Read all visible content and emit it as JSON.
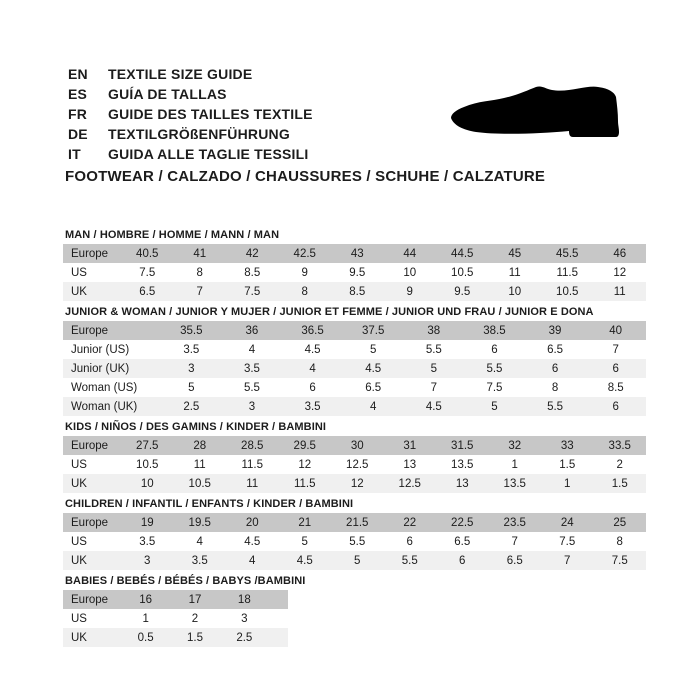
{
  "header": {
    "languages": [
      {
        "code": "EN",
        "label": "TEXTILE SIZE GUIDE"
      },
      {
        "code": "ES",
        "label": "GUÍA DE TALLAS"
      },
      {
        "code": "FR",
        "label": "GUIDE DES TAILLES TEXTILE"
      },
      {
        "code": "DE",
        "label": "TEXTILGRÖßENFÜHRUNG"
      },
      {
        "code": "IT",
        "label": "GUIDA ALLE TAGLIE TESSILI"
      }
    ],
    "category_line": "FOOTWEAR / CALZADO / CHAUSSURES / SCHUHE / CALZATURE",
    "shoe_icon": "dress-shoe-silhouette"
  },
  "colors": {
    "background": "#ffffff",
    "header_row_bg": "#c7c7c7",
    "alt_row_bg": "#f0f0f0",
    "text": "#1c1c1c",
    "icon": "#000000"
  },
  "tables": [
    {
      "title": "MAN / HOMBRE / HOMME / MANN / MAN",
      "rows": [
        {
          "label": "Europe",
          "values": [
            "40.5",
            "41",
            "42",
            "42.5",
            "43",
            "44",
            "44.5",
            "45",
            "45.5",
            "46"
          ]
        },
        {
          "label": "US",
          "values": [
            "7.5",
            "8",
            "8.5",
            "9",
            "9.5",
            "10",
            "10.5",
            "11",
            "11.5",
            "12"
          ]
        },
        {
          "label": "UK",
          "values": [
            "6.5",
            "7",
            "7.5",
            "8",
            "8.5",
            "9",
            "9.5",
            "10",
            "10.5",
            "11"
          ]
        }
      ]
    },
    {
      "title": "JUNIOR & WOMAN / JUNIOR Y MUJER / JUNIOR ET FEMME / JUNIOR UND FRAU / JUNIOR E DONA",
      "rows": [
        {
          "label": "Europe",
          "values": [
            "35.5",
            "36",
            "36.5",
            "37.5",
            "38",
            "38.5",
            "39",
            "40"
          ]
        },
        {
          "label": "Junior (US)",
          "values": [
            "3.5",
            "4",
            "4.5",
            "5",
            "5.5",
            "6",
            "6.5",
            "7"
          ]
        },
        {
          "label": "Junior (UK)",
          "values": [
            "3",
            "3.5",
            "4",
            "4.5",
            "5",
            "5.5",
            "6",
            "6"
          ]
        },
        {
          "label": "Woman (US)",
          "values": [
            "5",
            "5.5",
            "6",
            "6.5",
            "7",
            "7.5",
            "8",
            "8.5"
          ]
        },
        {
          "label": "Woman (UK)",
          "values": [
            "2.5",
            "3",
            "3.5",
            "4",
            "4.5",
            "5",
            "5.5",
            "6"
          ]
        }
      ]
    },
    {
      "title": "KIDS / NIÑOS / DES GAMINS / KINDER / BAMBINI",
      "rows": [
        {
          "label": "Europe",
          "values": [
            "27.5",
            "28",
            "28.5",
            "29.5",
            "30",
            "31",
            "31.5",
            "32",
            "33",
            "33.5"
          ]
        },
        {
          "label": "US",
          "values": [
            "10.5",
            "11",
            "11.5",
            "12",
            "12.5",
            "13",
            "13.5",
            "1",
            "1.5",
            "2"
          ]
        },
        {
          "label": "UK",
          "values": [
            "10",
            "10.5",
            "11",
            "11.5",
            "12",
            "12.5",
            "13",
            "13.5",
            "1",
            "1.5"
          ]
        }
      ]
    },
    {
      "title": "CHILDREN / INFANTIL / ENFANTS / KINDER / BAMBINI",
      "rows": [
        {
          "label": "Europe",
          "values": [
            "19",
            "19.5",
            "20",
            "21",
            "21.5",
            "22",
            "22.5",
            "23.5",
            "24",
            "25"
          ]
        },
        {
          "label": "US",
          "values": [
            "3.5",
            "4",
            "4.5",
            "5",
            "5.5",
            "6",
            "6.5",
            "7",
            "7.5",
            "8"
          ]
        },
        {
          "label": "UK",
          "values": [
            "3",
            "3.5",
            "4",
            "4.5",
            "5",
            "5.5",
            "6",
            "6.5",
            "7",
            "7.5"
          ]
        }
      ]
    },
    {
      "title": "BABIES  / BEBÉS / BÉBÉS / BABYS /BAMBINI",
      "rows": [
        {
          "label": "Europe",
          "values": [
            "16",
            "17",
            "18"
          ]
        },
        {
          "label": "US",
          "values": [
            "1",
            "2",
            "3"
          ]
        },
        {
          "label": "UK",
          "values": [
            "0.5",
            "1.5",
            "2.5"
          ]
        }
      ]
    }
  ]
}
